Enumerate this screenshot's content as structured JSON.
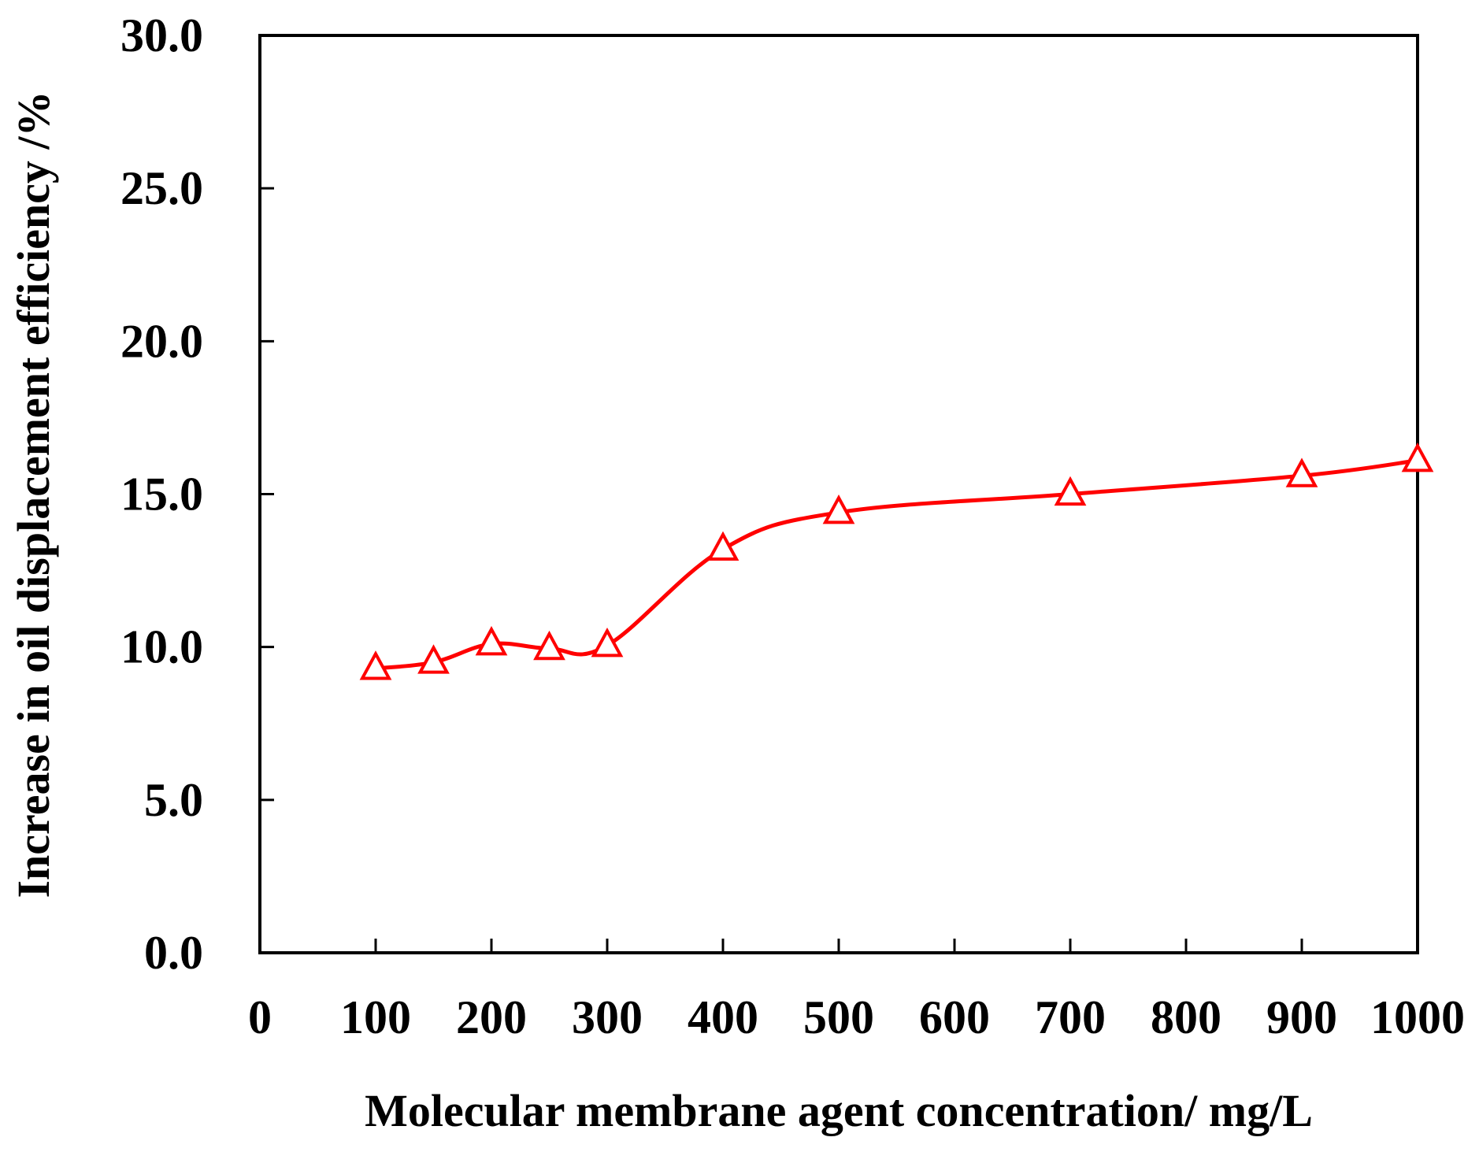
{
  "chart_data": {
    "type": "line",
    "title": "",
    "xlabel": "Molecular membrane agent concentration/ mg/L",
    "ylabel": "Increase in oil displacement efficiency /%",
    "xlim": [
      0,
      1000
    ],
    "ylim": [
      0,
      30
    ],
    "x_ticks": [
      0,
      100,
      200,
      300,
      400,
      500,
      600,
      700,
      800,
      900,
      1000
    ],
    "x_tick_labels": [
      "0",
      "100",
      "200",
      "300",
      "400",
      "500",
      "600",
      "700",
      "800",
      "900",
      "1000"
    ],
    "y_ticks": [
      0,
      5,
      10,
      15,
      20,
      25,
      30
    ],
    "y_tick_labels": [
      "0.0",
      "5.0",
      "10.0",
      "15.0",
      "20.0",
      "25.0",
      "30.0"
    ],
    "grid": false,
    "legend": null,
    "series": [
      {
        "name": "Increase in oil displacement efficiency",
        "color": "#ff0000",
        "marker": "open-triangle",
        "smooth": true,
        "x": [
          100,
          150,
          200,
          250,
          300,
          400,
          500,
          700,
          900,
          1000
        ],
        "values": [
          9.3,
          9.5,
          10.1,
          9.95,
          10.05,
          13.2,
          14.4,
          15.0,
          15.6,
          16.1
        ]
      }
    ]
  }
}
